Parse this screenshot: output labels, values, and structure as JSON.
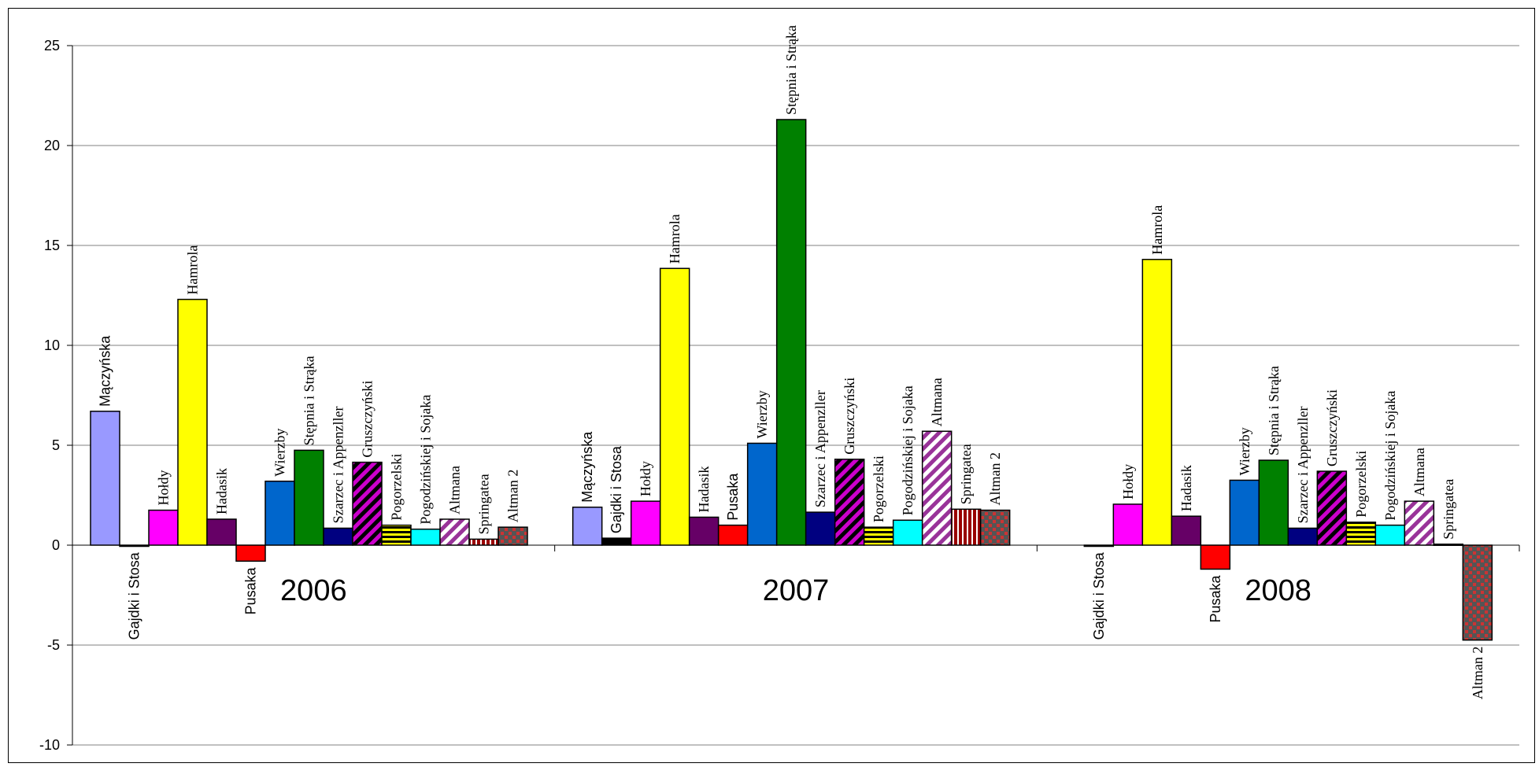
{
  "chart_data": {
    "type": "bar",
    "ylim": [
      -10,
      25
    ],
    "yticks": [
      "25",
      "20",
      "15",
      "10",
      "5",
      "0",
      "-5",
      "-10"
    ],
    "grid": true,
    "categories": [
      "2006",
      "2007",
      "2008"
    ],
    "groups": [
      {
        "year": "2006",
        "bars": [
          {
            "label": "Mączyńska",
            "value": 6.7,
            "color": "#9999ff",
            "pattern": "solid",
            "font": "sans"
          },
          {
            "label": "Gajdki i Stosa",
            "value": -0.05,
            "color": "#000000",
            "pattern": "solid",
            "font": "sans"
          },
          {
            "label": "Hołdy",
            "value": 1.75,
            "color": "#ff00ff",
            "pattern": "solid",
            "font": "serif"
          },
          {
            "label": "Hamrola",
            "value": 12.3,
            "color": "#ffff00",
            "pattern": "solid",
            "font": "serif"
          },
          {
            "label": "Hadasik",
            "value": 1.3,
            "color": "#660066",
            "pattern": "solid",
            "font": "serif"
          },
          {
            "label": "Pusaka",
            "value": -0.8,
            "color": "#ff0000",
            "pattern": "solid",
            "font": "sans"
          },
          {
            "label": "Wierzby",
            "value": 3.2,
            "color": "#0066cc",
            "pattern": "solid",
            "font": "serif"
          },
          {
            "label": "Stępnia i Strąka",
            "value": 4.75,
            "color": "#008000",
            "pattern": "solid",
            "font": "serif"
          },
          {
            "label": "Szarzec i Appenzller",
            "value": 0.85,
            "color": "#000080",
            "pattern": "solid",
            "font": "serif"
          },
          {
            "label": "Gruszczyński",
            "value": 4.15,
            "color": "#cc00cc",
            "pattern": "diag-dark",
            "font": "serif"
          },
          {
            "label": "Pogorzelski",
            "value": 1.0,
            "color": "#ffff00",
            "pattern": "hstripe",
            "font": "serif"
          },
          {
            "label": "Pogodzińskiej i Sojaka",
            "value": 0.8,
            "color": "#00ffff",
            "pattern": "solid",
            "font": "serif"
          },
          {
            "label": "Altmana",
            "value": 1.3,
            "color": "#993399",
            "pattern": "diag-light",
            "font": "serif"
          },
          {
            "label": "Springatea",
            "value": 0.3,
            "color": "#990000",
            "pattern": "vstripe",
            "font": "serif"
          },
          {
            "label": "Altman 2",
            "value": 0.9,
            "color": "#cc3333",
            "pattern": "dots",
            "font": "serif"
          }
        ]
      },
      {
        "year": "2007",
        "bars": [
          {
            "label": "Mączyńska",
            "value": 1.9,
            "color": "#9999ff",
            "pattern": "solid",
            "font": "sans"
          },
          {
            "label": "Gajdki i Stosa",
            "value": 0.35,
            "color": "#000000",
            "pattern": "solid",
            "font": "sans"
          },
          {
            "label": "Hołdy",
            "value": 2.2,
            "color": "#ff00ff",
            "pattern": "solid",
            "font": "serif"
          },
          {
            "label": "Hamrola",
            "value": 13.85,
            "color": "#ffff00",
            "pattern": "solid",
            "font": "serif"
          },
          {
            "label": "Hadasik",
            "value": 1.4,
            "color": "#660066",
            "pattern": "solid",
            "font": "serif"
          },
          {
            "label": "Pusaka",
            "value": 1.0,
            "color": "#ff0000",
            "pattern": "solid",
            "font": "sans"
          },
          {
            "label": "Wierzby",
            "value": 5.1,
            "color": "#0066cc",
            "pattern": "solid",
            "font": "serif"
          },
          {
            "label": "Stępnia i Strąka",
            "value": 21.3,
            "color": "#008000",
            "pattern": "solid",
            "font": "serif"
          },
          {
            "label": "Szarzec i Appenzller",
            "value": 1.65,
            "color": "#000080",
            "pattern": "solid",
            "font": "serif"
          },
          {
            "label": "Gruszczyński",
            "value": 4.3,
            "color": "#cc00cc",
            "pattern": "diag-dark",
            "font": "serif"
          },
          {
            "label": "Pogorzelski",
            "value": 0.9,
            "color": "#ffff00",
            "pattern": "hstripe",
            "font": "serif"
          },
          {
            "label": "Pogodzińskiej i Sojaka",
            "value": 1.25,
            "color": "#00ffff",
            "pattern": "solid",
            "font": "serif"
          },
          {
            "label": "Altmana",
            "value": 5.7,
            "color": "#993399",
            "pattern": "diag-light",
            "font": "serif"
          },
          {
            "label": "Springatea",
            "value": 1.8,
            "color": "#990000",
            "pattern": "vstripe",
            "font": "serif"
          },
          {
            "label": "Altman 2",
            "value": 1.75,
            "color": "#cc3333",
            "pattern": "dots",
            "font": "serif"
          }
        ]
      },
      {
        "year": "2008",
        "bars": [
          {
            "label": "Gajdki i Stosa",
            "value": -0.05,
            "color": "#000000",
            "pattern": "solid",
            "font": "sans"
          },
          {
            "label": "Hołdy",
            "value": 2.05,
            "color": "#ff00ff",
            "pattern": "solid",
            "font": "serif"
          },
          {
            "label": "Hamrola",
            "value": 14.3,
            "color": "#ffff00",
            "pattern": "solid",
            "font": "serif"
          },
          {
            "label": "Hadasik",
            "value": 1.45,
            "color": "#660066",
            "pattern": "solid",
            "font": "serif"
          },
          {
            "label": "Pusaka",
            "value": -1.2,
            "color": "#ff0000",
            "pattern": "solid",
            "font": "sans"
          },
          {
            "label": "Wierzby",
            "value": 3.25,
            "color": "#0066cc",
            "pattern": "solid",
            "font": "serif"
          },
          {
            "label": "Stępnia i Strąka",
            "value": 4.25,
            "color": "#008000",
            "pattern": "solid",
            "font": "serif"
          },
          {
            "label": "Szarzec i Appenzller",
            "value": 0.85,
            "color": "#000080",
            "pattern": "solid",
            "font": "serif"
          },
          {
            "label": "Gruszczyński",
            "value": 3.7,
            "color": "#cc00cc",
            "pattern": "diag-dark",
            "font": "serif"
          },
          {
            "label": "Pogorzelski",
            "value": 1.15,
            "color": "#ffff00",
            "pattern": "hstripe",
            "font": "serif"
          },
          {
            "label": "Pogodzińskiej i Sojaka",
            "value": 1.0,
            "color": "#00ffff",
            "pattern": "solid",
            "font": "serif"
          },
          {
            "label": "Altmana",
            "value": 2.2,
            "color": "#993399",
            "pattern": "diag-light",
            "font": "serif"
          },
          {
            "label": "Springatea",
            "value": 0.05,
            "color": "#990000",
            "pattern": "vstripe",
            "font": "serif"
          },
          {
            "label": "Altman 2",
            "value": -4.75,
            "color": "#cc3333",
            "pattern": "dots",
            "font": "serif"
          }
        ]
      }
    ]
  }
}
